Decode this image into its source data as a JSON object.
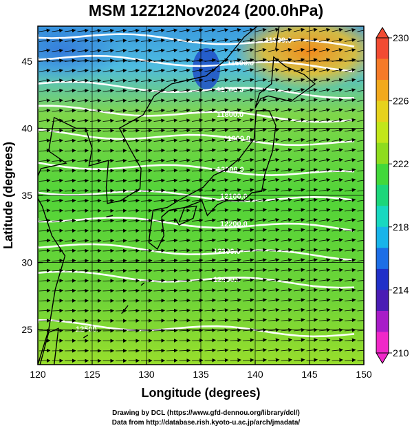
{
  "title": "MSM 12Z12Nov2024 (200.0hPa)",
  "xaxis": {
    "label": "Longitude (degrees)",
    "ticks": [
      "120",
      "125",
      "130",
      "135",
      "140",
      "145",
      "150"
    ],
    "range": [
      120,
      150
    ]
  },
  "yaxis": {
    "label": "Latitude  (degrees)",
    "ticks": [
      "25",
      "30",
      "35",
      "40",
      "45"
    ],
    "range": [
      22.4,
      47.6
    ]
  },
  "colorbar": {
    "min": 210,
    "max": 230,
    "ticks": [
      "230",
      "226",
      "222",
      "218",
      "214",
      "210"
    ],
    "colors": [
      "#f24b32",
      "#f57a28",
      "#f2a91c",
      "#e6d21c",
      "#c2e61a",
      "#8edc1e",
      "#42d83a",
      "#1cd67a",
      "#18d8c0",
      "#18b4ea",
      "#1c6ee6",
      "#2030c8",
      "#4a1cb4",
      "#a81cc8",
      "#f028c8"
    ]
  },
  "contours": [
    {
      "label": "11800.0"
    },
    {
      "label": "11600.0"
    },
    {
      "label": "11700.0"
    },
    {
      "label": "11800.0"
    },
    {
      "label": "11900.0"
    },
    {
      "label": "12000.0"
    },
    {
      "label": "12100.0"
    },
    {
      "label": "12200.0"
    },
    {
      "label": "12300.0"
    },
    {
      "label": "12400.0"
    },
    {
      "label": "12500."
    }
  ],
  "credits": {
    "line1": "Drawing by DCL (https://www.gfd-dennou.org/library/dcl/)",
    "line2": "Data from http://database.rish.kyoto-u.ac.jp/arch/jmadata/"
  }
}
